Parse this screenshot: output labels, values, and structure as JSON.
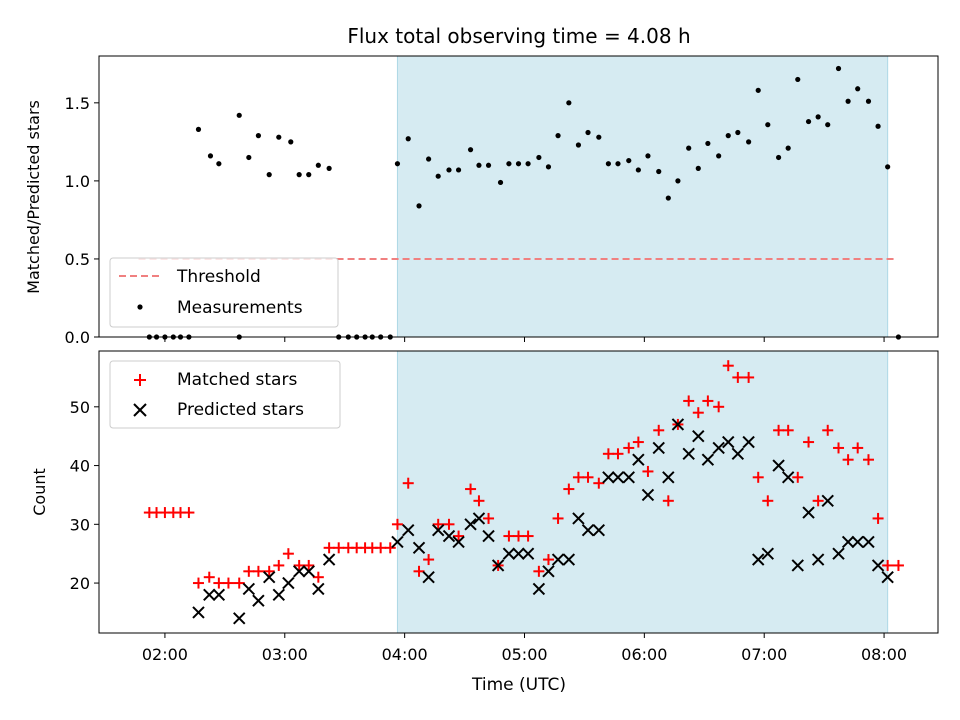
{
  "chart_data": [
    {
      "type": "scatter",
      "title": "Flux total observing time = 4.08 h",
      "ylabel": "Matched/Predicted stars",
      "xlabel": "",
      "xlim_hours": [
        1.45,
        8.45
      ],
      "ylim": [
        0,
        1.8
      ],
      "yticks": [
        "0.0",
        "0.5",
        "1.0",
        "1.5"
      ],
      "shaded_span_hours": [
        3.94,
        8.03
      ],
      "shaded_color": "#add8e6",
      "threshold": {
        "name": "Threshold",
        "value": 0.5,
        "x_range_hours": [
          1.78,
          8.08
        ],
        "color": "#f08080"
      },
      "legend": {
        "placement": "lower-left",
        "entries": [
          "Threshold",
          "Measurements"
        ]
      },
      "series": [
        {
          "name": "Measurements",
          "color": "#000000",
          "points": [
            [
              1.87,
              0
            ],
            [
              1.93,
              0
            ],
            [
              2.0,
              0
            ],
            [
              2.07,
              0
            ],
            [
              2.13,
              0
            ],
            [
              2.2,
              0
            ],
            [
              2.28,
              1.33
            ],
            [
              2.38,
              1.16
            ],
            [
              2.45,
              1.11
            ],
            [
              2.62,
              1.42
            ],
            [
              2.7,
              1.15
            ],
            [
              2.78,
              1.29
            ],
            [
              2.87,
              1.04
            ],
            [
              2.95,
              1.28
            ],
            [
              3.05,
              1.25
            ],
            [
              3.12,
              1.04
            ],
            [
              3.2,
              1.04
            ],
            [
              3.28,
              1.1
            ],
            [
              3.37,
              1.08
            ],
            [
              2.62,
              0
            ],
            [
              3.45,
              0
            ],
            [
              3.53,
              0
            ],
            [
              3.6,
              0
            ],
            [
              3.67,
              0
            ],
            [
              3.73,
              0
            ],
            [
              3.8,
              0
            ],
            [
              3.88,
              0
            ],
            [
              3.94,
              1.11
            ],
            [
              4.03,
              1.27
            ],
            [
              4.12,
              0.84
            ],
            [
              4.2,
              1.14
            ],
            [
              4.28,
              1.03
            ],
            [
              4.37,
              1.07
            ],
            [
              4.45,
              1.07
            ],
            [
              4.55,
              1.2
            ],
            [
              4.62,
              1.1
            ],
            [
              4.7,
              1.1
            ],
            [
              4.8,
              0.99
            ],
            [
              4.87,
              1.11
            ],
            [
              4.95,
              1.11
            ],
            [
              5.03,
              1.11
            ],
            [
              5.12,
              1.15
            ],
            [
              5.2,
              1.09
            ],
            [
              5.28,
              1.29
            ],
            [
              5.37,
              1.5
            ],
            [
              5.45,
              1.23
            ],
            [
              5.53,
              1.31
            ],
            [
              5.62,
              1.28
            ],
            [
              5.7,
              1.11
            ],
            [
              5.78,
              1.11
            ],
            [
              5.87,
              1.13
            ],
            [
              5.95,
              1.07
            ],
            [
              6.03,
              1.16
            ],
            [
              6.12,
              1.06
            ],
            [
              6.2,
              0.89
            ],
            [
              6.28,
              1.0
            ],
            [
              6.37,
              1.21
            ],
            [
              6.45,
              1.08
            ],
            [
              6.53,
              1.24
            ],
            [
              6.62,
              1.16
            ],
            [
              6.7,
              1.29
            ],
            [
              6.78,
              1.31
            ],
            [
              6.87,
              1.25
            ],
            [
              6.95,
              1.58
            ],
            [
              7.03,
              1.36
            ],
            [
              7.12,
              1.15
            ],
            [
              7.2,
              1.21
            ],
            [
              7.28,
              1.65
            ],
            [
              7.37,
              1.38
            ],
            [
              7.45,
              1.41
            ],
            [
              7.53,
              1.36
            ],
            [
              7.62,
              1.72
            ],
            [
              7.7,
              1.51
            ],
            [
              7.78,
              1.59
            ],
            [
              7.87,
              1.51
            ],
            [
              7.95,
              1.35
            ],
            [
              8.03,
              1.09
            ],
            [
              8.12,
              0
            ]
          ]
        }
      ]
    },
    {
      "type": "scatter",
      "title": "",
      "ylabel": "Count",
      "xlabel": "Time (UTC)",
      "xlim_hours": [
        1.45,
        8.45
      ],
      "ylim": [
        11.5,
        59.5
      ],
      "yticks": [
        "20",
        "30",
        "40",
        "50"
      ],
      "xticks": [
        "02:00",
        "03:00",
        "04:00",
        "05:00",
        "06:00",
        "07:00",
        "08:00"
      ],
      "shaded_span_hours": [
        3.94,
        8.03
      ],
      "shaded_color": "#add8e6",
      "legend": {
        "placement": "upper-left",
        "entries": [
          "Matched stars",
          "Predicted stars"
        ]
      },
      "series": [
        {
          "name": "Matched stars",
          "marker": "+",
          "color": "#ff0000",
          "points": [
            [
              1.87,
              32
            ],
            [
              1.93,
              32
            ],
            [
              2.0,
              32
            ],
            [
              2.07,
              32
            ],
            [
              2.13,
              32
            ],
            [
              2.2,
              32
            ],
            [
              2.28,
              20
            ],
            [
              2.37,
              21
            ],
            [
              2.45,
              20
            ],
            [
              2.53,
              20
            ],
            [
              2.62,
              20
            ],
            [
              2.7,
              22
            ],
            [
              2.78,
              22
            ],
            [
              2.87,
              22
            ],
            [
              2.95,
              23
            ],
            [
              3.03,
              25
            ],
            [
              3.12,
              23
            ],
            [
              3.2,
              23
            ],
            [
              3.28,
              21
            ],
            [
              3.37,
              26
            ],
            [
              3.45,
              26
            ],
            [
              3.53,
              26
            ],
            [
              3.6,
              26
            ],
            [
              3.67,
              26
            ],
            [
              3.73,
              26
            ],
            [
              3.8,
              26
            ],
            [
              3.88,
              26
            ],
            [
              3.94,
              30
            ],
            [
              4.03,
              37
            ],
            [
              4.12,
              22
            ],
            [
              4.2,
              24
            ],
            [
              4.28,
              30
            ],
            [
              4.37,
              30
            ],
            [
              4.45,
              28
            ],
            [
              4.55,
              36
            ],
            [
              4.62,
              34
            ],
            [
              4.7,
              31
            ],
            [
              4.78,
              23
            ],
            [
              4.87,
              28
            ],
            [
              4.95,
              28
            ],
            [
              5.03,
              28
            ],
            [
              5.12,
              22
            ],
            [
              5.2,
              24
            ],
            [
              5.28,
              31
            ],
            [
              5.37,
              36
            ],
            [
              5.45,
              38
            ],
            [
              5.53,
              38
            ],
            [
              5.62,
              37
            ],
            [
              5.7,
              42
            ],
            [
              5.78,
              42
            ],
            [
              5.87,
              43
            ],
            [
              5.95,
              44
            ],
            [
              6.03,
              39
            ],
            [
              6.12,
              46
            ],
            [
              6.2,
              34
            ],
            [
              6.28,
              47
            ],
            [
              6.37,
              51
            ],
            [
              6.45,
              49
            ],
            [
              6.53,
              51
            ],
            [
              6.62,
              50
            ],
            [
              6.7,
              57
            ],
            [
              6.78,
              55
            ],
            [
              6.87,
              55
            ],
            [
              6.95,
              38
            ],
            [
              7.03,
              34
            ],
            [
              7.12,
              46
            ],
            [
              7.2,
              46
            ],
            [
              7.28,
              38
            ],
            [
              7.37,
              44
            ],
            [
              7.45,
              34
            ],
            [
              7.53,
              46
            ],
            [
              7.62,
              43
            ],
            [
              7.7,
              41
            ],
            [
              7.78,
              43
            ],
            [
              7.87,
              41
            ],
            [
              7.95,
              31
            ],
            [
              8.03,
              23
            ],
            [
              8.12,
              23
            ]
          ]
        },
        {
          "name": "Predicted stars",
          "marker": "x",
          "color": "#000000",
          "points": [
            [
              2.28,
              15
            ],
            [
              2.37,
              18
            ],
            [
              2.45,
              18
            ],
            [
              2.62,
              14
            ],
            [
              2.7,
              19
            ],
            [
              2.78,
              17
            ],
            [
              2.87,
              21
            ],
            [
              2.95,
              18
            ],
            [
              3.03,
              20
            ],
            [
              3.12,
              22
            ],
            [
              3.2,
              22
            ],
            [
              3.28,
              19
            ],
            [
              3.37,
              24
            ],
            [
              3.94,
              27
            ],
            [
              4.03,
              29
            ],
            [
              4.12,
              26
            ],
            [
              4.2,
              21
            ],
            [
              4.28,
              29
            ],
            [
              4.37,
              28
            ],
            [
              4.45,
              27
            ],
            [
              4.55,
              30
            ],
            [
              4.62,
              31
            ],
            [
              4.7,
              28
            ],
            [
              4.78,
              23
            ],
            [
              4.87,
              25
            ],
            [
              4.95,
              25
            ],
            [
              5.03,
              25
            ],
            [
              5.12,
              19
            ],
            [
              5.2,
              22
            ],
            [
              5.28,
              24
            ],
            [
              5.37,
              24
            ],
            [
              5.45,
              31
            ],
            [
              5.53,
              29
            ],
            [
              5.62,
              29
            ],
            [
              5.7,
              38
            ],
            [
              5.78,
              38
            ],
            [
              5.87,
              38
            ],
            [
              5.95,
              41
            ],
            [
              6.03,
              35
            ],
            [
              6.12,
              43
            ],
            [
              6.2,
              38
            ],
            [
              6.28,
              47
            ],
            [
              6.37,
              42
            ],
            [
              6.45,
              45
            ],
            [
              6.53,
              41
            ],
            [
              6.62,
              43
            ],
            [
              6.7,
              44
            ],
            [
              6.78,
              42
            ],
            [
              6.87,
              44
            ],
            [
              6.95,
              24
            ],
            [
              7.03,
              25
            ],
            [
              7.12,
              40
            ],
            [
              7.2,
              38
            ],
            [
              7.28,
              23
            ],
            [
              7.37,
              32
            ],
            [
              7.45,
              24
            ],
            [
              7.53,
              34
            ],
            [
              7.62,
              25
            ],
            [
              7.7,
              27
            ],
            [
              7.78,
              27
            ],
            [
              7.87,
              27
            ],
            [
              7.95,
              23
            ],
            [
              8.03,
              21
            ]
          ]
        }
      ]
    }
  ]
}
